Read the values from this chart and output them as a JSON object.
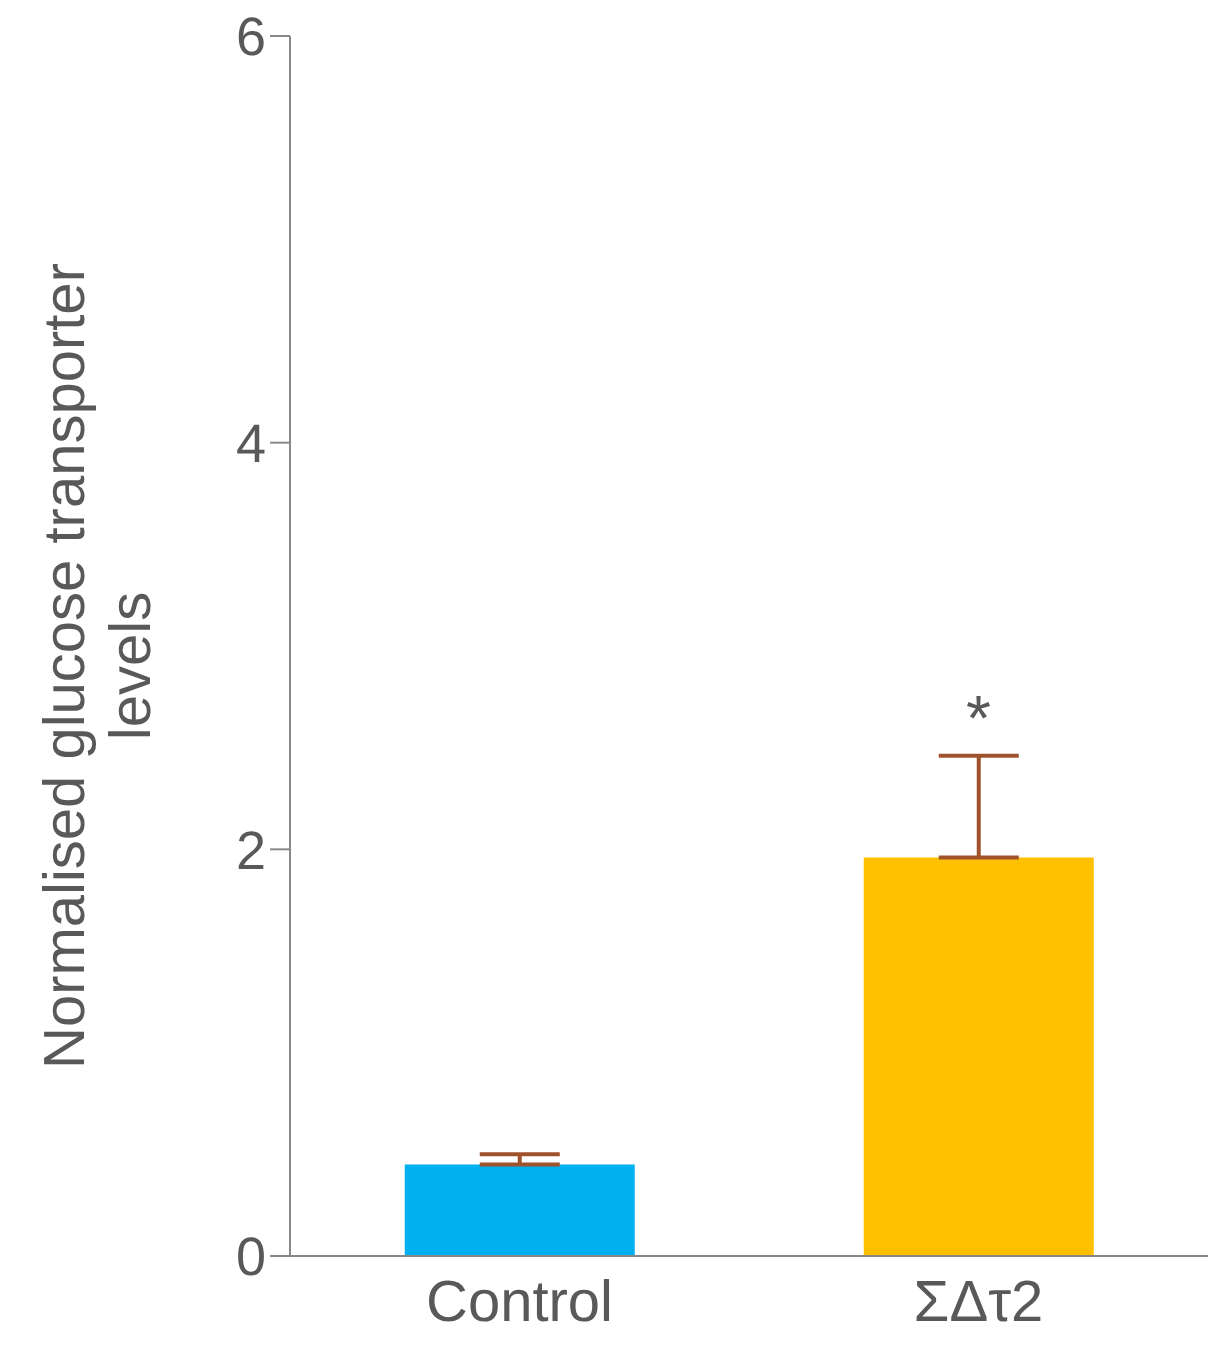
{
  "chart_data": {
    "type": "bar",
    "ylabel": "Normalised glucose transporter levels",
    "categories": [
      "Control",
      "ΣΔτ2"
    ],
    "values": [
      0.45,
      1.96
    ],
    "colors": [
      "#00b0f0",
      "#ffc000"
    ],
    "errors": [
      [
        0.45,
        0.5
      ],
      [
        1.96,
        2.46
      ]
    ],
    "ylim": [
      0,
      6
    ],
    "yticks": [
      0,
      2,
      4,
      6
    ],
    "grid": false,
    "annotations": [
      "*"
    ]
  }
}
